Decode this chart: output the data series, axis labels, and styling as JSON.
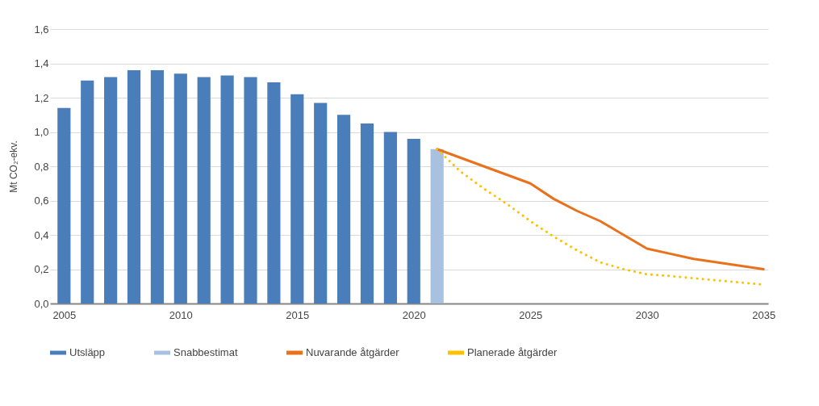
{
  "chart_data": {
    "type": "bar",
    "ylabel": "Mt CO₂-ekv.",
    "xlim": [
      2004.4,
      2035.2
    ],
    "xticks": [
      2005,
      2010,
      2015,
      2020,
      2025,
      2030,
      2035
    ],
    "ylim": [
      0,
      1.6
    ],
    "yticks": [
      {
        "value": 0,
        "label": "0,0"
      },
      {
        "value": 0.2,
        "label": "0,2"
      },
      {
        "value": 0.4,
        "label": "0,4"
      },
      {
        "value": 0.6,
        "label": "0,6"
      },
      {
        "value": 0.8,
        "label": "0,8"
      },
      {
        "value": 1.0,
        "label": "1,0"
      },
      {
        "value": 1.2,
        "label": "1,2"
      },
      {
        "value": 1.4,
        "label": "1,4"
      },
      {
        "value": 1.6,
        "label": "1,6"
      }
    ],
    "grid": "y",
    "legend": "bottom",
    "marker": "none",
    "series": [
      {
        "name": "Utsläpp",
        "color": "#4a7ebb",
        "x": [
          2005,
          2006,
          2007,
          2008,
          2009,
          2010,
          2011,
          2012,
          2013,
          2014,
          2015,
          2016,
          2017,
          2018,
          2019,
          2020
        ],
        "values": [
          1.14,
          1.3,
          1.32,
          1.36,
          1.36,
          1.34,
          1.32,
          1.33,
          1.32,
          1.29,
          1.22,
          1.17,
          1.1,
          1.05,
          1.0,
          0.96
        ]
      },
      {
        "name": "Snabbestimat",
        "color": "#a9c1e0",
        "x": [
          2021
        ],
        "values": [
          0.9
        ]
      },
      {
        "name": "Nuvarande åtgärder",
        "type": "line",
        "color": "#e9711c",
        "line_style": "solid",
        "x": [
          2021,
          2025,
          2026,
          2027,
          2028,
          2029,
          2030,
          2031,
          2032,
          2033,
          2035
        ],
        "values": [
          0.9,
          0.7,
          0.61,
          0.54,
          0.48,
          0.4,
          0.32,
          0.29,
          0.26,
          0.24,
          0.2
        ]
      },
      {
        "name": "Planerade åtgärder",
        "type": "line",
        "color": "#ffc000",
        "line_style": "dotted",
        "x": [
          2021,
          2022,
          2023,
          2024,
          2025,
          2026,
          2027,
          2028,
          2029,
          2030,
          2031,
          2035
        ],
        "values": [
          0.9,
          0.77,
          0.67,
          0.58,
          0.48,
          0.39,
          0.31,
          0.24,
          0.2,
          0.17,
          0.16,
          0.11
        ]
      }
    ]
  }
}
